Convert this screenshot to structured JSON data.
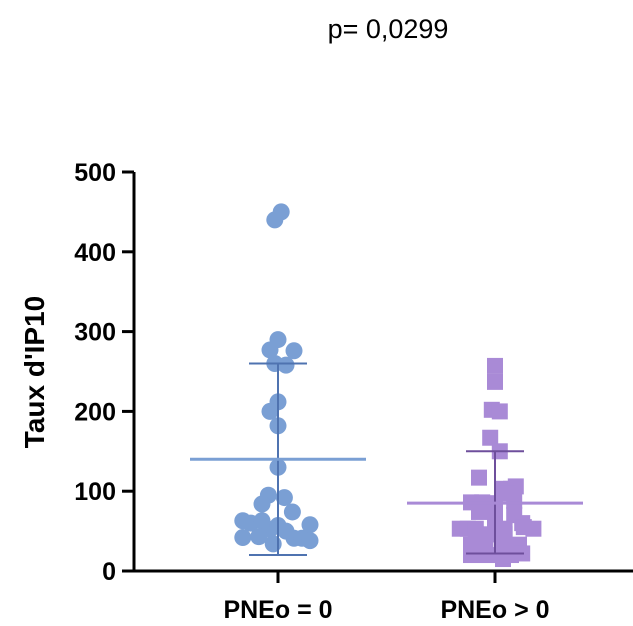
{
  "chart_data": {
    "type": "scatter",
    "annotation": "p= 0,0299",
    "ylabel": "Taux d'IP10",
    "ylim": [
      0,
      500
    ],
    "yticks": [
      0,
      100,
      200,
      300,
      400,
      500
    ],
    "categories": [
      "PNEo = 0",
      "PNEo > 0"
    ],
    "grid": false,
    "series": [
      {
        "category": "PNEo = 0",
        "marker": "circle",
        "color": "#7a9fd4",
        "line_color": "#4f73b0",
        "mean": 140,
        "sd_upper": 260,
        "sd_lower": 20,
        "points": [
          [
            -0.02,
            440
          ],
          [
            0.02,
            450
          ],
          [
            0.0,
            290
          ],
          [
            -0.05,
            277
          ],
          [
            0.1,
            276
          ],
          [
            -0.02,
            260
          ],
          [
            0.05,
            258
          ],
          [
            0.0,
            212
          ],
          [
            -0.05,
            200
          ],
          [
            0.0,
            182
          ],
          [
            0.0,
            130
          ],
          [
            -0.06,
            95
          ],
          [
            0.04,
            92
          ],
          [
            -0.1,
            84
          ],
          [
            0.09,
            74
          ],
          [
            -0.22,
            63
          ],
          [
            -0.17,
            60
          ],
          [
            -0.1,
            63
          ],
          [
            -0.05,
            52
          ],
          [
            0.0,
            57
          ],
          [
            0.05,
            50
          ],
          [
            0.2,
            58
          ],
          [
            -0.22,
            42
          ],
          [
            -0.12,
            43
          ],
          [
            0.1,
            41
          ],
          [
            0.15,
            41
          ],
          [
            0.2,
            38
          ],
          [
            -0.03,
            34
          ]
        ]
      },
      {
        "category": "PNEo > 0",
        "marker": "square",
        "color": "#a98ad6",
        "line_color": "#6e4f9c",
        "mean": 85,
        "sd_upper": 150,
        "sd_lower": 22,
        "points": [
          [
            0.0,
            257
          ],
          [
            0.0,
            237
          ],
          [
            -0.02,
            202
          ],
          [
            0.03,
            200
          ],
          [
            -0.03,
            167
          ],
          [
            0.03,
            150
          ],
          [
            -0.1,
            117
          ],
          [
            0.05,
            103
          ],
          [
            0.1,
            103
          ],
          [
            0.13,
            106
          ],
          [
            0.08,
            97
          ],
          [
            -0.15,
            86
          ],
          [
            -0.08,
            86
          ],
          [
            0.0,
            85
          ],
          [
            0.12,
            88
          ],
          [
            -0.1,
            74
          ],
          [
            0.0,
            70
          ],
          [
            0.12,
            70
          ],
          [
            0.17,
            60
          ],
          [
            -0.22,
            53
          ],
          [
            -0.17,
            53
          ],
          [
            -0.12,
            53
          ],
          [
            0.0,
            58
          ],
          [
            0.06,
            53
          ],
          [
            0.18,
            55
          ],
          [
            0.24,
            53
          ],
          [
            -0.12,
            46
          ],
          [
            -0.05,
            46
          ],
          [
            0.0,
            46
          ],
          [
            0.06,
            46
          ],
          [
            -0.15,
            33
          ],
          [
            -0.06,
            32
          ],
          [
            0.05,
            33
          ],
          [
            0.15,
            33
          ],
          [
            -0.15,
            20
          ],
          [
            -0.05,
            20
          ],
          [
            0.05,
            15
          ],
          [
            0.1,
            20
          ],
          [
            0.17,
            22
          ]
        ]
      }
    ]
  }
}
